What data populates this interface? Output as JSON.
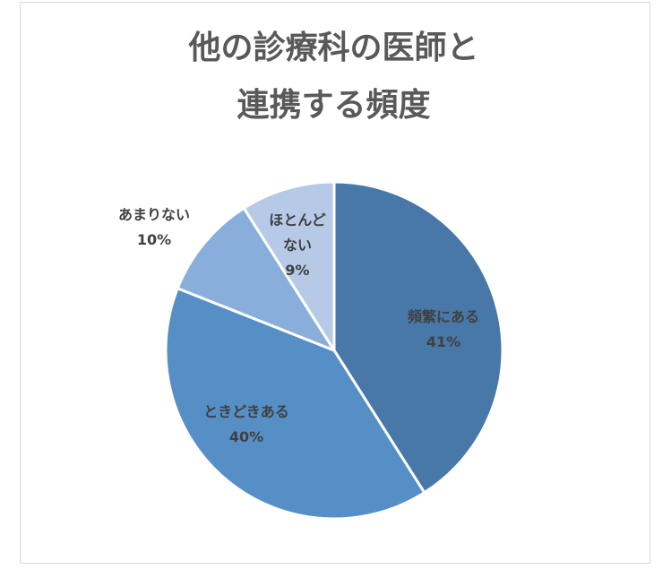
{
  "chart_data": {
    "type": "pie",
    "title": "他の診療科の医師と連携する頻度",
    "categories": [
      "頻繁にある",
      "ときどきある",
      "あまりない",
      "ほとんどない"
    ],
    "values": [
      41,
      40,
      10,
      9
    ],
    "value_labels": [
      "41%",
      "40%",
      "10%",
      "9%"
    ],
    "colors": [
      "#4878a8",
      "#568fc6",
      "#88aedb",
      "#b6cae7"
    ]
  }
}
